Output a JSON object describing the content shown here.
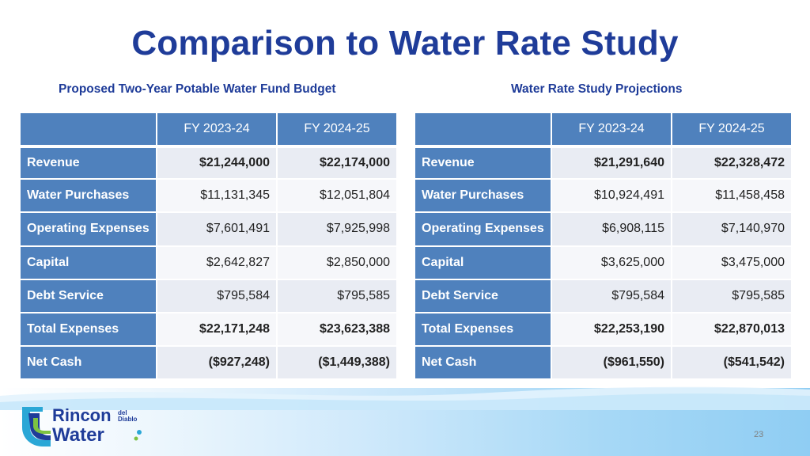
{
  "title": "Comparison to Water Rate Study",
  "left_table": {
    "caption": "Proposed Two-Year Potable Water Fund Budget",
    "headers": [
      "",
      "FY 2023-24",
      "FY 2024-25"
    ],
    "rows": [
      {
        "label": "Revenue",
        "fy1": "$21,244,000",
        "fy2": "$22,174,000"
      },
      {
        "label": "Water Purchases",
        "fy1": "$11,131,345",
        "fy2": "$12,051,804"
      },
      {
        "label": "Operating Expenses",
        "fy1": "$7,601,491",
        "fy2": "$7,925,998"
      },
      {
        "label": "Capital",
        "fy1": "$2,642,827",
        "fy2": "$2,850,000"
      },
      {
        "label": "Debt Service",
        "fy1": "$795,584",
        "fy2": "$795,585"
      },
      {
        "label": "Total Expenses",
        "fy1": "$22,171,248",
        "fy2": "$23,623,388"
      },
      {
        "label": "Net Cash",
        "fy1": "($927,248)",
        "fy2": "($1,449,388)"
      }
    ]
  },
  "right_table": {
    "caption": "Water Rate Study Projections",
    "headers": [
      "",
      "FY 2023-24",
      "FY 2024-25"
    ],
    "rows": [
      {
        "label": "Revenue",
        "fy1": "$21,291,640",
        "fy2": "$22,328,472"
      },
      {
        "label": "Water Purchases",
        "fy1": "$10,924,491",
        "fy2": "$11,458,458"
      },
      {
        "label": "Operating Expenses",
        "fy1": "$6,908,115",
        "fy2": "$7,140,970"
      },
      {
        "label": "Capital",
        "fy1": "$3,625,000",
        "fy2": "$3,475,000"
      },
      {
        "label": "Debt Service",
        "fy1": "$795,584",
        "fy2": "$795,585"
      },
      {
        "label": "Total Expenses",
        "fy1": "$22,253,190",
        "fy2": "$22,870,013"
      },
      {
        "label": "Net Cash",
        "fy1": "($961,550)",
        "fy2": "($541,542)"
      }
    ]
  },
  "logo": {
    "word_top": "Rincon",
    "word_small_1": "del",
    "word_small_2": "Diablo",
    "word_bottom": "Water",
    "icon": "rincon-water-logo-icon"
  },
  "page_number": "23",
  "colors": {
    "title": "#1f3c99",
    "header_fill": "#4f81bd",
    "row_odd": "#e9ecf3",
    "row_even": "#f6f7fa"
  }
}
